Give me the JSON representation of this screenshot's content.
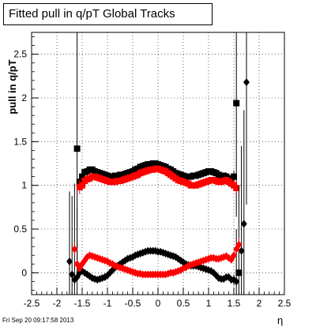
{
  "chart_data": {
    "type": "scatter",
    "title": "Fitted pull in q/pT  Global Tracks",
    "xlabel": "η",
    "ylabel": "pull in q/pT",
    "xlim": [
      -2.5,
      2.5
    ],
    "ylim": [
      -0.25,
      2.75
    ],
    "x_ticks": [
      "-2.5",
      "-2",
      "-1.5",
      "-1",
      "-0.5",
      "0",
      "0.5",
      "1",
      "1.5",
      "2",
      "2.5"
    ],
    "y_ticks": [
      "0",
      "0.5",
      "1",
      "1.5",
      "2",
      "2.5"
    ],
    "grid": true,
    "series": [
      {
        "marker": "square",
        "color": "#000000",
        "x": [
          -1.6,
          -1.55,
          -1.5,
          -1.45,
          -1.4,
          -1.35,
          -1.3,
          -1.25,
          -1.2,
          -1.15,
          -1.1,
          -1.05,
          -1.0,
          -0.95,
          -0.9,
          -0.85,
          -0.8,
          -0.75,
          -0.7,
          -0.65,
          -0.6,
          -0.55,
          -0.5,
          -0.45,
          -0.4,
          -0.35,
          -0.3,
          -0.25,
          -0.2,
          -0.15,
          -0.1,
          -0.05,
          0.0,
          0.05,
          0.1,
          0.15,
          0.2,
          0.25,
          0.3,
          0.35,
          0.4,
          0.45,
          0.5,
          0.55,
          0.6,
          0.65,
          0.7,
          0.75,
          0.8,
          0.85,
          0.9,
          0.95,
          1.0,
          1.05,
          1.1,
          1.15,
          1.2,
          1.25,
          1.3,
          1.35,
          1.4,
          1.45,
          1.5,
          1.55,
          1.6
        ],
        "y": [
          1.42,
          1.04,
          1.1,
          1.15,
          1.16,
          1.18,
          1.18,
          1.16,
          1.15,
          1.14,
          1.13,
          1.12,
          1.11,
          1.1,
          1.1,
          1.11,
          1.11,
          1.12,
          1.12,
          1.13,
          1.14,
          1.15,
          1.16,
          1.18,
          1.19,
          1.21,
          1.22,
          1.23,
          1.24,
          1.24,
          1.25,
          1.25,
          1.24,
          1.23,
          1.22,
          1.21,
          1.19,
          1.18,
          1.16,
          1.14,
          1.13,
          1.12,
          1.11,
          1.1,
          1.1,
          1.1,
          1.11,
          1.11,
          1.12,
          1.13,
          1.14,
          1.15,
          1.16,
          1.16,
          1.15,
          1.14,
          1.12,
          1.11,
          1.11,
          1.1,
          1.08,
          1.05,
          1.1,
          1.94,
          0.0
        ],
        "errors": [
          1.4,
          0.07,
          0.04,
          0.02,
          0.02,
          0.02,
          0.02,
          0.02,
          0.02,
          0.02,
          0.02,
          0.02,
          0.02,
          0.02,
          0.02,
          0.02,
          0.02,
          0.02,
          0.02,
          0.02,
          0.02,
          0.02,
          0.02,
          0.02,
          0.02,
          0.02,
          0.02,
          0.02,
          0.02,
          0.02,
          0.02,
          0.02,
          0.02,
          0.02,
          0.02,
          0.02,
          0.02,
          0.02,
          0.02,
          0.02,
          0.02,
          0.02,
          0.02,
          0.02,
          0.02,
          0.02,
          0.02,
          0.02,
          0.02,
          0.02,
          0.02,
          0.02,
          0.02,
          0.02,
          0.02,
          0.02,
          0.02,
          0.02,
          0.02,
          0.02,
          0.02,
          0.04,
          0.07,
          1.3,
          0.0
        ]
      },
      {
        "marker": "square",
        "color": "#ff0000",
        "x": [
          -1.55,
          -1.5,
          -1.45,
          -1.4,
          -1.35,
          -1.3,
          -1.25,
          -1.2,
          -1.15,
          -1.1,
          -1.05,
          -1.0,
          -0.95,
          -0.9,
          -0.85,
          -0.8,
          -0.75,
          -0.7,
          -0.65,
          -0.6,
          -0.55,
          -0.5,
          -0.45,
          -0.4,
          -0.35,
          -0.3,
          -0.25,
          -0.2,
          -0.15,
          -0.1,
          -0.05,
          0.0,
          0.05,
          0.1,
          0.15,
          0.2,
          0.25,
          0.3,
          0.35,
          0.4,
          0.45,
          0.5,
          0.55,
          0.6,
          0.65,
          0.7,
          0.75,
          0.8,
          0.85,
          0.9,
          0.95,
          1.0,
          1.05,
          1.1,
          1.15,
          1.2,
          1.25,
          1.3,
          1.35,
          1.4,
          1.45,
          1.5,
          1.55
        ],
        "y": [
          0.98,
          1.0,
          1.05,
          1.07,
          1.08,
          1.1,
          1.1,
          1.09,
          1.08,
          1.07,
          1.06,
          1.05,
          1.04,
          1.04,
          1.04,
          1.05,
          1.05,
          1.06,
          1.07,
          1.08,
          1.09,
          1.1,
          1.11,
          1.12,
          1.14,
          1.15,
          1.16,
          1.17,
          1.18,
          1.18,
          1.19,
          1.19,
          1.18,
          1.17,
          1.16,
          1.14,
          1.12,
          1.1,
          1.08,
          1.06,
          1.05,
          1.04,
          1.03,
          1.02,
          1.0,
          1.0,
          1.0,
          1.01,
          1.02,
          1.03,
          1.04,
          1.05,
          1.06,
          1.06,
          1.05,
          1.04,
          1.04,
          1.05,
          1.06,
          1.04,
          1.02,
          1.0,
          0.97
        ],
        "errors": [
          0.08,
          0.04,
          0.03,
          0.02,
          0.02,
          0.02,
          0.02,
          0.02,
          0.02,
          0.02,
          0.02,
          0.02,
          0.02,
          0.02,
          0.02,
          0.02,
          0.02,
          0.02,
          0.02,
          0.02,
          0.02,
          0.02,
          0.02,
          0.02,
          0.02,
          0.02,
          0.02,
          0.02,
          0.02,
          0.02,
          0.02,
          0.02,
          0.02,
          0.02,
          0.02,
          0.02,
          0.02,
          0.02,
          0.02,
          0.02,
          0.02,
          0.02,
          0.02,
          0.02,
          0.02,
          0.02,
          0.02,
          0.02,
          0.02,
          0.02,
          0.02,
          0.02,
          0.02,
          0.02,
          0.02,
          0.02,
          0.02,
          0.02,
          0.02,
          0.02,
          0.02,
          0.04,
          0.08
        ]
      },
      {
        "marker": "diamond",
        "color": "#000000",
        "x": [
          -1.75,
          -1.7,
          -1.65,
          -1.6,
          -1.55,
          -1.5,
          -1.45,
          -1.4,
          -1.35,
          -1.3,
          -1.25,
          -1.2,
          -1.15,
          -1.1,
          -1.05,
          -1.0,
          -0.95,
          -0.9,
          -0.85,
          -0.8,
          -0.75,
          -0.7,
          -0.65,
          -0.6,
          -0.55,
          -0.5,
          -0.45,
          -0.4,
          -0.35,
          -0.3,
          -0.25,
          -0.2,
          -0.15,
          -0.1,
          -0.05,
          0.0,
          0.05,
          0.1,
          0.15,
          0.2,
          0.25,
          0.3,
          0.35,
          0.4,
          0.45,
          0.5,
          0.55,
          0.6,
          0.65,
          0.7,
          0.75,
          0.8,
          0.85,
          0.9,
          0.95,
          1.0,
          1.05,
          1.1,
          1.15,
          1.2,
          1.25,
          1.3,
          1.35,
          1.4,
          1.45,
          1.5,
          1.55,
          1.6,
          1.65,
          1.7,
          1.75
        ],
        "y": [
          0.13,
          -0.02,
          -0.08,
          -0.05,
          0.0,
          0.02,
          0.0,
          -0.02,
          -0.04,
          -0.06,
          -0.07,
          -0.08,
          -0.07,
          -0.06,
          -0.05,
          -0.03,
          0.0,
          0.03,
          0.06,
          0.08,
          0.1,
          0.12,
          0.14,
          0.16,
          0.17,
          0.18,
          0.2,
          0.21,
          0.22,
          0.23,
          0.24,
          0.25,
          0.25,
          0.25,
          0.25,
          0.24,
          0.24,
          0.23,
          0.22,
          0.21,
          0.2,
          0.19,
          0.18,
          0.16,
          0.14,
          0.12,
          0.1,
          0.09,
          0.08,
          0.08,
          0.08,
          0.07,
          0.06,
          0.05,
          0.04,
          0.03,
          0.02,
          0.0,
          -0.03,
          -0.06,
          -0.07,
          -0.07,
          -0.05,
          -0.05,
          -0.08,
          -0.08,
          -0.1,
          0.0,
          0.25,
          0.56,
          2.18
        ],
        "errors": [
          0.8,
          0.9,
          1.1,
          0.8,
          0.06,
          0.04,
          0.03,
          0.02,
          0.02,
          0.02,
          0.02,
          0.02,
          0.02,
          0.02,
          0.02,
          0.02,
          0.02,
          0.02,
          0.02,
          0.02,
          0.02,
          0.02,
          0.02,
          0.02,
          0.02,
          0.02,
          0.02,
          0.02,
          0.02,
          0.02,
          0.02,
          0.02,
          0.02,
          0.02,
          0.02,
          0.02,
          0.02,
          0.02,
          0.02,
          0.02,
          0.02,
          0.02,
          0.02,
          0.02,
          0.02,
          0.02,
          0.02,
          0.02,
          0.02,
          0.02,
          0.02,
          0.02,
          0.02,
          0.02,
          0.02,
          0.02,
          0.02,
          0.02,
          0.02,
          0.02,
          0.02,
          0.02,
          0.02,
          0.03,
          0.04,
          0.06,
          0.6,
          1.0,
          1.2,
          1.3,
          1.4
        ]
      },
      {
        "marker": "diamond",
        "color": "#ff0000",
        "x": [
          -1.65,
          -1.6,
          -1.55,
          -1.5,
          -1.45,
          -1.4,
          -1.35,
          -1.3,
          -1.25,
          -1.2,
          -1.15,
          -1.1,
          -1.05,
          -1.0,
          -0.95,
          -0.9,
          -0.85,
          -0.8,
          -0.75,
          -0.7,
          -0.65,
          -0.6,
          -0.55,
          -0.5,
          -0.45,
          -0.4,
          -0.35,
          -0.3,
          -0.25,
          -0.2,
          -0.15,
          -0.1,
          -0.05,
          0.0,
          0.05,
          0.1,
          0.15,
          0.2,
          0.25,
          0.3,
          0.35,
          0.4,
          0.45,
          0.5,
          0.55,
          0.6,
          0.65,
          0.7,
          0.75,
          0.8,
          0.85,
          0.9,
          0.95,
          1.0,
          1.05,
          1.1,
          1.15,
          1.2,
          1.25,
          1.3,
          1.35,
          1.4,
          1.45,
          1.5,
          1.55,
          1.6
        ],
        "y": [
          0.27,
          0.1,
          0.05,
          0.1,
          0.14,
          0.18,
          0.2,
          0.19,
          0.18,
          0.17,
          0.16,
          0.15,
          0.14,
          0.13,
          0.11,
          0.1,
          0.08,
          0.07,
          0.06,
          0.05,
          0.04,
          0.03,
          0.02,
          0.01,
          0.0,
          -0.01,
          -0.01,
          -0.02,
          -0.02,
          -0.02,
          -0.02,
          -0.02,
          -0.02,
          -0.02,
          -0.02,
          -0.02,
          -0.02,
          -0.01,
          0.0,
          0.0,
          0.01,
          0.02,
          0.03,
          0.05,
          0.06,
          0.08,
          0.09,
          0.1,
          0.11,
          0.12,
          0.13,
          0.14,
          0.15,
          0.16,
          0.17,
          0.17,
          0.16,
          0.16,
          0.17,
          0.18,
          0.19,
          0.17,
          0.15,
          0.2,
          0.27,
          0.32
        ],
        "errors": [
          0.08,
          0.05,
          0.03,
          0.02,
          0.02,
          0.02,
          0.02,
          0.02,
          0.02,
          0.02,
          0.02,
          0.02,
          0.02,
          0.02,
          0.02,
          0.02,
          0.02,
          0.02,
          0.02,
          0.02,
          0.02,
          0.02,
          0.02,
          0.02,
          0.02,
          0.02,
          0.02,
          0.02,
          0.02,
          0.02,
          0.02,
          0.02,
          0.02,
          0.02,
          0.02,
          0.02,
          0.02,
          0.02,
          0.02,
          0.02,
          0.02,
          0.02,
          0.02,
          0.02,
          0.02,
          0.02,
          0.02,
          0.02,
          0.02,
          0.02,
          0.02,
          0.02,
          0.02,
          0.02,
          0.02,
          0.02,
          0.02,
          0.02,
          0.02,
          0.02,
          0.02,
          0.02,
          0.02,
          0.03,
          0.05,
          0.08
        ]
      }
    ]
  },
  "footer": {
    "timestamp": "Fri Sep 20 09:17:58 2013"
  }
}
